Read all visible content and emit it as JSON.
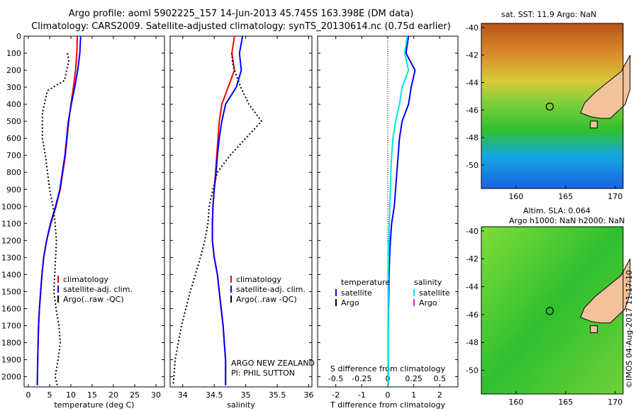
{
  "header": {
    "title_line1": "Argo profile: aoml 5902225_157 14-Jun-2013 45.745S 163.398E (DM data)",
    "title_line2": "Climatology: CARS2009. Satellite-adjusted climatology: synTS_20130614.nc (0.75d earlier)"
  },
  "colors": {
    "climatology": "#ff0000",
    "satellite_adj": "#0000ff",
    "argo": "#000000",
    "salinity_satellite": "#00e5e5",
    "salinity_argo": "#dd22dd"
  },
  "chart_data": [
    {
      "type": "line",
      "name": "temperature",
      "xlabel": "temperature (deg C)",
      "ylabel": "",
      "xlim": [
        -1,
        32
      ],
      "ylim": [
        2060,
        0
      ],
      "xticks": [
        0,
        5,
        10,
        15,
        20,
        25,
        30
      ],
      "yticks": [
        0,
        100,
        200,
        300,
        400,
        500,
        600,
        700,
        800,
        900,
        1000,
        1100,
        1200,
        1300,
        1400,
        1500,
        1600,
        1700,
        1800,
        1900,
        2000
      ],
      "legend": {
        "position": "bottom-center",
        "entries": [
          "climatology",
          "satellite-adj. clim.",
          "Argo(..raw -QC)"
        ]
      },
      "series": [
        {
          "name": "climatology",
          "style": "solid",
          "x": [
            11.5,
            11.4,
            11.1,
            10.6,
            10.0,
            9.5,
            9.1,
            8.7,
            8.1,
            7.5,
            6.5,
            5.3,
            4.3,
            3.6,
            3.2,
            2.9,
            2.6,
            2.4,
            2.3,
            2.2,
            2.1
          ],
          "y": [
            0,
            100,
            200,
            300,
            400,
            500,
            600,
            700,
            800,
            900,
            1000,
            1100,
            1200,
            1300,
            1400,
            1500,
            1600,
            1700,
            1800,
            1900,
            2050
          ]
        },
        {
          "name": "satellite-adj. clim.",
          "style": "solid",
          "x": [
            12.3,
            12.1,
            11.6,
            10.9,
            10.1,
            9.4,
            9.0,
            8.6,
            8.0,
            7.4,
            6.4,
            5.2,
            4.3,
            3.6,
            3.2,
            2.9,
            2.6,
            2.4,
            2.3,
            2.2,
            2.1
          ],
          "y": [
            0,
            100,
            200,
            300,
            400,
            500,
            600,
            700,
            800,
            900,
            1000,
            1100,
            1200,
            1300,
            1400,
            1500,
            1600,
            1700,
            1800,
            1900,
            2050
          ]
        },
        {
          "name": "Argo(..raw -QC)",
          "style": "dotted",
          "x": [
            9.2,
            9.5,
            9.0,
            8.5,
            4.5,
            3.3,
            3.3,
            4.0,
            4.5,
            5.0,
            5.8,
            6.3,
            6.6,
            6.3,
            6.0,
            6.5,
            7.2,
            7.5,
            7.0,
            6.3,
            6.8
          ],
          "y": [
            100,
            150,
            200,
            260,
            320,
            450,
            600,
            700,
            800,
            900,
            1000,
            1100,
            1200,
            1350,
            1500,
            1600,
            1700,
            1800,
            1900,
            2000,
            2050
          ]
        }
      ]
    },
    {
      "type": "line",
      "name": "salinity",
      "xlabel": "salinity",
      "ylabel": "",
      "xlim": [
        33.8,
        36.05
      ],
      "ylim": [
        2060,
        0
      ],
      "xticks": [
        34,
        34.5,
        35,
        35.5,
        36
      ],
      "legend": {
        "position": "bottom-right",
        "entries": [
          "climatology",
          "satellite-adj. clim.",
          "Argo(..raw -QC)"
        ]
      },
      "annotation": [
        "ARGO NEW ZEALAND",
        "PI: PHIL SUTTON"
      ],
      "series": [
        {
          "name": "climatology",
          "style": "solid",
          "x": [
            34.82,
            34.78,
            34.82,
            34.72,
            34.62,
            34.58,
            34.56,
            34.54,
            34.52,
            34.5,
            34.48,
            34.47,
            34.47,
            34.5,
            34.55,
            34.58,
            34.61,
            34.64,
            34.66,
            34.68,
            34.68
          ],
          "y": [
            0,
            100,
            200,
            300,
            400,
            500,
            600,
            700,
            800,
            900,
            1000,
            1100,
            1200,
            1300,
            1400,
            1500,
            1600,
            1700,
            1800,
            1900,
            2050
          ]
        },
        {
          "name": "satellite-adj. clim.",
          "style": "solid",
          "x": [
            34.95,
            34.9,
            34.93,
            34.85,
            34.68,
            34.62,
            34.58,
            34.55,
            34.53,
            34.5,
            34.48,
            34.47,
            34.47,
            34.5,
            34.55,
            34.58,
            34.61,
            34.64,
            34.66,
            34.68,
            34.68
          ],
          "y": [
            0,
            100,
            200,
            300,
            400,
            500,
            600,
            700,
            800,
            900,
            1000,
            1100,
            1200,
            1300,
            1400,
            1500,
            1600,
            1700,
            1800,
            1900,
            2050
          ]
        },
        {
          "name": "Argo(..raw -QC)",
          "style": "dotted",
          "x": [
            34.78,
            34.79,
            34.82,
            34.92,
            35.05,
            35.25,
            35.0,
            34.75,
            34.55,
            34.48,
            34.42,
            34.4,
            34.35,
            34.28,
            34.2,
            34.12,
            34.05,
            33.98,
            33.93,
            33.88,
            33.85
          ],
          "y": [
            100,
            150,
            200,
            300,
            400,
            500,
            600,
            700,
            800,
            900,
            1000,
            1100,
            1200,
            1300,
            1400,
            1500,
            1600,
            1700,
            1800,
            1900,
            2050
          ]
        }
      ]
    },
    {
      "type": "line",
      "name": "difference",
      "xlabel": "T difference from climatology",
      "x2label": "S difference from climatology",
      "xlim": [
        -2.7,
        2.7
      ],
      "ylim": [
        2060,
        0
      ],
      "xticks": [
        -2,
        -1,
        0,
        1,
        2
      ],
      "x2ticks": [
        -0.5,
        -0.25,
        0,
        0.25,
        0.5
      ],
      "legend": {
        "position": "bottom",
        "groups": [
          {
            "title": "temperature",
            "entries": [
              "satellite",
              "Argo"
            ]
          },
          {
            "title": "salinity",
            "entries": [
              "satellite",
              "Argo"
            ]
          }
        ]
      },
      "series": [
        {
          "name": "temperature satellite",
          "style": "solid",
          "x": [
            0.8,
            0.7,
            1.05,
            0.9,
            0.8,
            0.55,
            0.45,
            0.4,
            0.35,
            0.3,
            0.25,
            0.15,
            0.1,
            0.07,
            0.05,
            0.04,
            0.03,
            0.02,
            0.02,
            0.02,
            0.02
          ],
          "y": [
            0,
            100,
            200,
            300,
            400,
            500,
            600,
            700,
            800,
            900,
            1000,
            1100,
            1200,
            1300,
            1400,
            1500,
            1600,
            1700,
            1800,
            1900,
            2050
          ]
        },
        {
          "name": "salinity satellite",
          "style": "solid",
          "x": [
            0.75,
            0.65,
            0.8,
            0.55,
            0.45,
            0.3,
            0.2,
            0.15,
            0.12,
            0.1,
            0.08,
            0.06,
            0.04,
            0.03,
            0.02,
            0.02,
            0.02,
            0.02,
            0.02,
            0.02,
            0.02
          ],
          "y": [
            0,
            100,
            200,
            300,
            400,
            500,
            600,
            700,
            800,
            900,
            1000,
            1100,
            1200,
            1300,
            1400,
            1500,
            1600,
            1700,
            1800,
            1900,
            2050
          ]
        }
      ]
    },
    {
      "type": "heatmap",
      "name": "satellite SST map",
      "title": "sat. SST: 11.9  Argo: NaN",
      "xlim": [
        156.5,
        170.8
      ],
      "ylim": [
        -51.7,
        -39.7
      ],
      "xticks": [
        160,
        165,
        170
      ],
      "yticks": [
        -40,
        -42,
        -44,
        -46,
        -48,
        -50
      ],
      "marker": {
        "lon": 163.4,
        "lat": -45.745
      }
    },
    {
      "type": "heatmap",
      "name": "altimetry SLA map",
      "title_line1": "Altim. SLA: 0.064",
      "title_line2": "Argo h1000: NaN  h2000: NaN",
      "xlim": [
        156.5,
        170.8
      ],
      "ylim": [
        -51.7,
        -39.7
      ],
      "xticks": [
        160,
        165,
        170
      ],
      "yticks": [
        -40,
        -42,
        -44,
        -46,
        -48,
        -50
      ],
      "marker": {
        "lon": 163.4,
        "lat": -45.745
      }
    }
  ],
  "footer": {
    "stamp": "©IMOS 04-Aug-2017 11:17:10"
  }
}
